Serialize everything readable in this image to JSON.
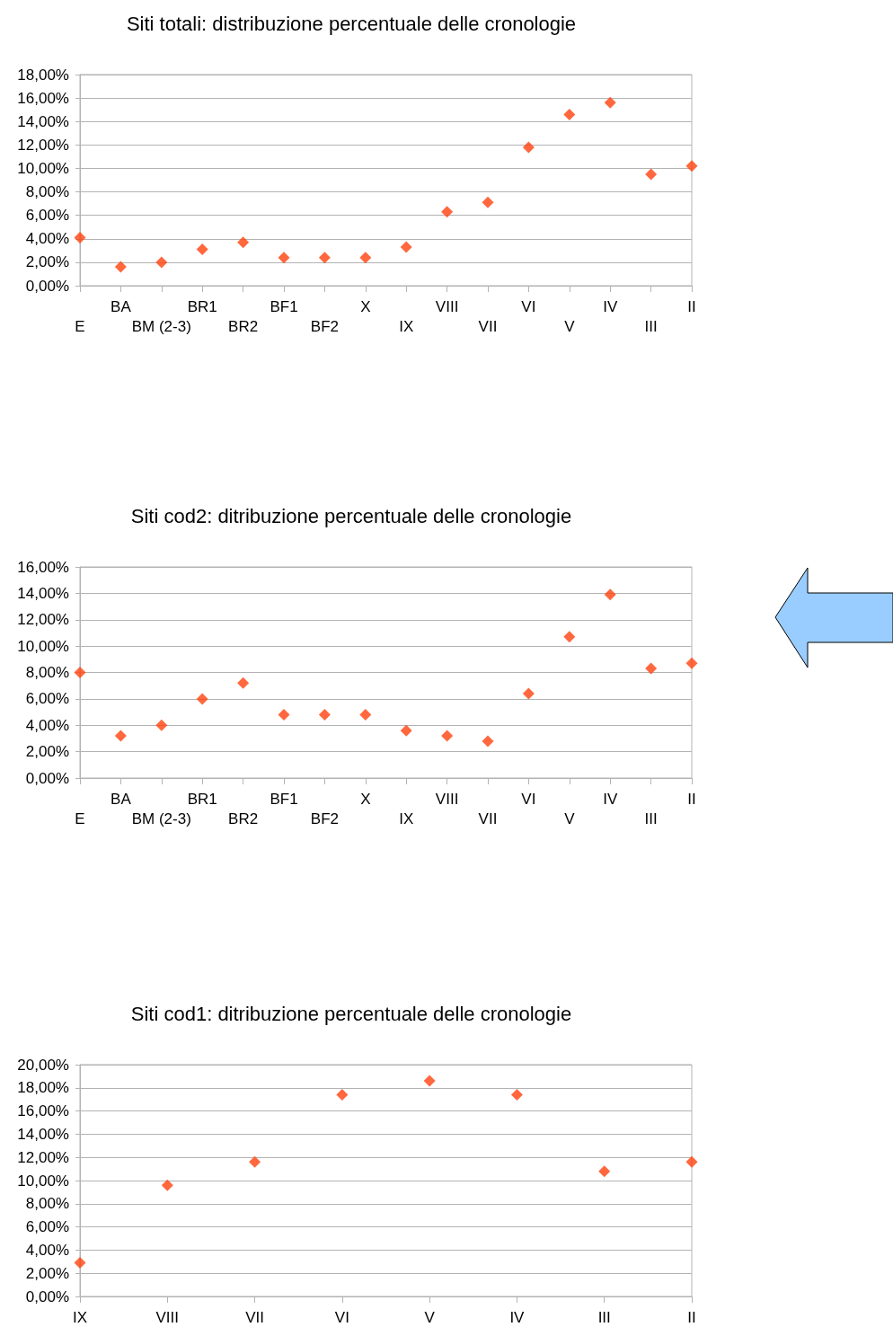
{
  "chart_data": [
    {
      "type": "scatter",
      "title": "Siti totali: distribuzione percentuale delle cronologie",
      "categories": [
        "E",
        "BA",
        "BM (2-3)",
        "BR1",
        "BR2",
        "BF1",
        "BF2",
        "X",
        "IX",
        "VIII",
        "VII",
        "VI",
        "V",
        "IV",
        "III",
        "II"
      ],
      "series": [
        {
          "color": "#ff420e",
          "values": [
            4.1,
            1.6,
            2.0,
            3.1,
            3.7,
            2.4,
            2.4,
            2.4,
            3.3,
            6.3,
            7.1,
            11.8,
            14.6,
            15.6,
            9.5,
            10.2
          ]
        }
      ],
      "ylim": [
        0,
        18
      ],
      "yticks": [
        {
          "value": 0,
          "label": "0,00%"
        },
        {
          "value": 2,
          "label": "2,00%"
        },
        {
          "value": 4,
          "label": "4,00%"
        },
        {
          "value": 6,
          "label": "6,00%"
        },
        {
          "value": 8,
          "label": "8,00%"
        },
        {
          "value": 10,
          "label": "10,00%"
        },
        {
          "value": 12,
          "label": "12,00%"
        },
        {
          "value": 14,
          "label": "14,00%"
        },
        {
          "value": 16,
          "label": "16,00%"
        },
        {
          "value": 18,
          "label": "18,00%"
        }
      ],
      "grid": "y",
      "marker": "diamond"
    },
    {
      "type": "scatter",
      "title": "Siti cod2: ditribuzione percentuale delle cronologie",
      "categories": [
        "E",
        "BA",
        "BM (2-3)",
        "BR1",
        "BR2",
        "BF1",
        "BF2",
        "X",
        "IX",
        "VIII",
        "VII",
        "VI",
        "V",
        "IV",
        "III",
        "II"
      ],
      "series": [
        {
          "color": "#ff420e",
          "values": [
            8.0,
            3.2,
            4.0,
            6.0,
            7.2,
            4.8,
            4.8,
            4.8,
            3.6,
            3.2,
            2.8,
            6.4,
            10.7,
            13.9,
            8.3,
            8.7
          ]
        }
      ],
      "ylim": [
        0,
        16
      ],
      "yticks": [
        {
          "value": 0,
          "label": "0,00%"
        },
        {
          "value": 2,
          "label": "2,00%"
        },
        {
          "value": 4,
          "label": "4,00%"
        },
        {
          "value": 6,
          "label": "6,00%"
        },
        {
          "value": 8,
          "label": "8,00%"
        },
        {
          "value": 10,
          "label": "10,00%"
        },
        {
          "value": 12,
          "label": "12,00%"
        },
        {
          "value": 14,
          "label": "14,00%"
        },
        {
          "value": 16,
          "label": "16,00%"
        }
      ],
      "grid": "y",
      "marker": "diamond"
    },
    {
      "type": "scatter",
      "title": "Siti cod1: ditribuzione percentuale delle cronologie",
      "categories": [
        "IX",
        "VIII",
        "VII",
        "VI",
        "V",
        "IV",
        "III",
        "II"
      ],
      "series": [
        {
          "color": "#ff420e",
          "values": [
            2.9,
            9.6,
            11.6,
            17.4,
            18.6,
            17.4,
            10.8,
            11.6
          ]
        }
      ],
      "ylim": [
        0,
        20
      ],
      "yticks": [
        {
          "value": 0,
          "label": "0,00%"
        },
        {
          "value": 2,
          "label": "2,00%"
        },
        {
          "value": 4,
          "label": "4,00%"
        },
        {
          "value": 6,
          "label": "6,00%"
        },
        {
          "value": 8,
          "label": "8,00%"
        },
        {
          "value": 10,
          "label": "10,00%"
        },
        {
          "value": 12,
          "label": "12,00%"
        },
        {
          "value": 14,
          "label": "14,00%"
        },
        {
          "value": 16,
          "label": "16,00%"
        },
        {
          "value": 18,
          "label": "18,00%"
        },
        {
          "value": 20,
          "label": "20,00%"
        }
      ],
      "grid": "y",
      "marker": "diamond"
    }
  ]
}
